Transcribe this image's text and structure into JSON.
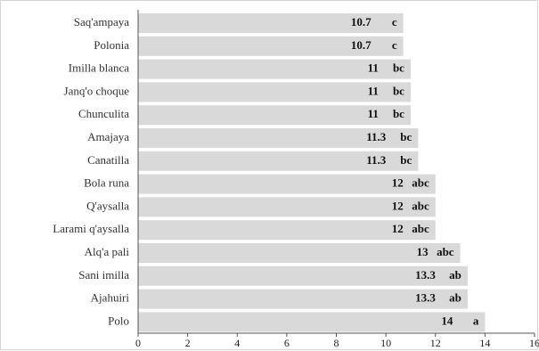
{
  "chart_data": {
    "type": "bar",
    "orientation": "horizontal",
    "categories": [
      "Saq'ampaya",
      "Polonia",
      "Imilla blanca",
      "Janq'o choque",
      "Chunculita",
      "Amajaya",
      "Canatilla",
      "Bola runa",
      "Q'aysalla",
      "Larami q'aysalla",
      "Alq'a pali",
      "Sani imilla",
      "Ajahuiri",
      "Polo"
    ],
    "values": [
      10.7,
      10.7,
      11,
      11,
      11,
      11.3,
      11.3,
      12,
      12,
      12,
      13,
      13.3,
      13.3,
      14
    ],
    "value_labels": [
      "10.7",
      "10.7",
      "11",
      "11",
      "11",
      "11.3",
      "11.3",
      "12",
      "12",
      "12",
      "13",
      "13.3",
      "13.3",
      "14"
    ],
    "group_labels": [
      "c",
      "c",
      "bc",
      "bc",
      "bc",
      "bc",
      "bc",
      "abc",
      "abc",
      "abc",
      "abc",
      "ab",
      "ab",
      "a"
    ],
    "xlim": [
      0,
      16
    ],
    "xticks": [
      0,
      2,
      4,
      6,
      8,
      10,
      12,
      14,
      16
    ],
    "title": "",
    "xlabel": "",
    "ylabel": "",
    "grid": false,
    "legend": "none",
    "bar_color": "#d9d9d9"
  }
}
